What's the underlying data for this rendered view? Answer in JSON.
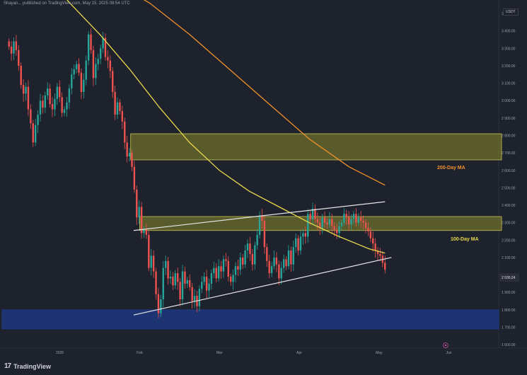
{
  "header": {
    "caption": "Shayan... published on TradingView.com, May 15, 2025 08:54 UTC",
    "unit": "USDT"
  },
  "brand": {
    "icon": "tradingview-logo-icon",
    "label": "TradingView"
  },
  "colors": {
    "background": "#1e222d",
    "bull": "#26a69a",
    "bear": "#ef5350",
    "ma100": "#e8d94a",
    "ma200": "#f0902a",
    "zone_yellow": "#8a8a2c",
    "zone_blue": "#1f3a8a",
    "trendline": "#e6e6e6"
  },
  "chart_data": {
    "type": "candlestick",
    "y_axis": {
      "tick_labels": [
        "3 500.00",
        "3 400.00",
        "3 300.00",
        "3 200.00",
        "3 100.00",
        "3 000.00",
        "2 900.00",
        "2 800.00",
        "2 700.00",
        "2 600.00",
        "2 500.00",
        "2 400.00",
        "2 300.00",
        "2 200.00",
        "2 100.00",
        "2 000.00",
        "1 900.00",
        "1 800.00",
        "1 700.00",
        "1 600.00"
      ],
      "tick_values": [
        3500,
        3400,
        3300,
        3200,
        3100,
        3000,
        2900,
        2800,
        2700,
        2600,
        2500,
        2400,
        2300,
        2200,
        2100,
        2000,
        1900,
        1800,
        1700,
        1600
      ]
    },
    "x_axis": {
      "tick_labels": [
        "2025",
        "Feb",
        "Mar",
        "Apr",
        "May",
        "Jun"
      ]
    },
    "last_price_label": "2 030.24",
    "ma_labels": {
      "ma100": "100-Day MA",
      "ma200": "200-Day MA"
    },
    "zones": [
      {
        "kind": "resistance",
        "color": "yellow",
        "y_low": 2660,
        "y_high": 2810
      },
      {
        "kind": "resistance",
        "color": "yellow",
        "y_low": 2255,
        "y_high": 2335
      },
      {
        "kind": "support",
        "color": "blue",
        "y_low": 1690,
        "y_high": 1800
      }
    ],
    "trendlines": [
      {
        "from": {
          "t": 0.268,
          "v": 2255
        },
        "to": {
          "t": 0.772,
          "v": 2420
        }
      },
      {
        "from": {
          "t": 0.268,
          "v": 1770
        },
        "to": {
          "t": 0.785,
          "v": 2100
        }
      }
    ],
    "ma100": [
      {
        "t": 0.0,
        "v": 3960
      },
      {
        "t": 0.08,
        "v": 3760
      },
      {
        "t": 0.14,
        "v": 3560
      },
      {
        "t": 0.2,
        "v": 3380
      },
      {
        "t": 0.26,
        "v": 3180
      },
      {
        "t": 0.32,
        "v": 2960
      },
      {
        "t": 0.38,
        "v": 2760
      },
      {
        "t": 0.44,
        "v": 2600
      },
      {
        "t": 0.5,
        "v": 2480
      },
      {
        "t": 0.56,
        "v": 2390
      },
      {
        "t": 0.62,
        "v": 2300
      },
      {
        "t": 0.68,
        "v": 2220
      },
      {
        "t": 0.74,
        "v": 2150
      },
      {
        "t": 0.772,
        "v": 2125
      }
    ],
    "ma200": [
      {
        "t": 0.0,
        "v": 3740
      },
      {
        "t": 0.06,
        "v": 3760
      },
      {
        "t": 0.14,
        "v": 3740
      },
      {
        "t": 0.22,
        "v": 3690
      },
      {
        "t": 0.3,
        "v": 3560
      },
      {
        "t": 0.38,
        "v": 3380
      },
      {
        "t": 0.46,
        "v": 3180
      },
      {
        "t": 0.54,
        "v": 2980
      },
      {
        "t": 0.62,
        "v": 2780
      },
      {
        "t": 0.7,
        "v": 2620
      },
      {
        "t": 0.772,
        "v": 2515
      }
    ],
    "candles_close": [
      3310,
      3270,
      3340,
      3290,
      3200,
      3090,
      3040,
      3080,
      2950,
      2870,
      2760,
      2860,
      2920,
      3000,
      2960,
      3030,
      3070,
      2980,
      2950,
      3010,
      3080,
      3020,
      2930,
      2950,
      2990,
      3070,
      3150,
      3180,
      3210,
      3160,
      3050,
      3120,
      3230,
      3380,
      3290,
      3130,
      3210,
      3240,
      3300,
      3360,
      3250,
      3230,
      3170,
      3050,
      2920,
      2990,
      2940,
      2880,
      2760,
      2680,
      2700,
      2620,
      2490,
      2330,
      2390,
      2240,
      2260,
      2230,
      2040,
      2110,
      2020,
      1890,
      1780,
      1860,
      2040,
      2080,
      1980,
      1990,
      1940,
      2010,
      1960,
      1860,
      2020,
      1950,
      1970,
      1930,
      1850,
      1880,
      1820,
      1920,
      1960,
      1990,
      1910,
      1950,
      2010,
      2040,
      1980,
      2050,
      2020,
      2090,
      2080,
      1990,
      1960,
      2000,
      2050,
      2030,
      2100,
      2060,
      2140,
      2180,
      2120,
      2060,
      2170,
      2230,
      2340,
      2310,
      2160,
      2080,
      2010,
      2050,
      2100,
      2060,
      1980,
      2040,
      2090,
      2050,
      2140,
      2060,
      2160,
      2210,
      2140,
      2220,
      2240,
      2220,
      2350,
      2320,
      2380,
      2320,
      2300,
      2270,
      2330,
      2300,
      2290,
      2320,
      2280,
      2260,
      2240,
      2280,
      2300,
      2350,
      2330,
      2290,
      2320,
      2350,
      2300,
      2330,
      2310,
      2300,
      2270,
      2250,
      2210,
      2180,
      2140,
      2120,
      2110,
      2070,
      2030
    ],
    "t_start": 0.018,
    "t_end": 0.772
  }
}
